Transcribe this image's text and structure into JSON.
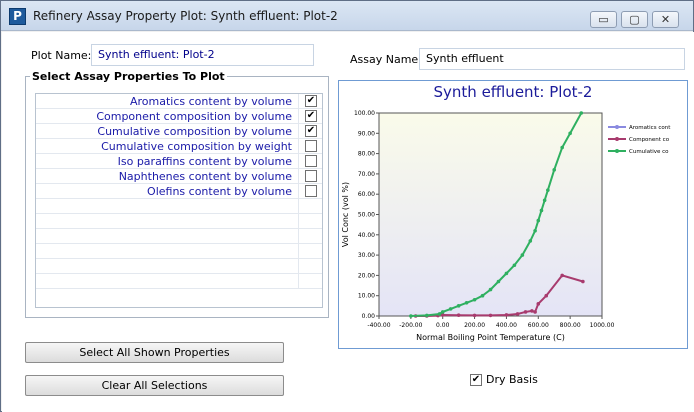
{
  "window": {
    "title": "Refinery Assay Property Plot: Synth effluent: Plot-2",
    "app_icon_letter": "P",
    "minimize": "▭",
    "maximize": "▢",
    "close": "✕"
  },
  "form": {
    "plot_name_label": "Plot Name:",
    "plot_name_value": "Synth effluent: Plot-2",
    "assay_name_label": "Assay Name:",
    "assay_name_value": "Synth effluent"
  },
  "properties": {
    "group_title": "Select Assay Properties To Plot",
    "items": [
      {
        "label": "Aromatics content by volume",
        "checked": true
      },
      {
        "label": "Component composition by volume",
        "checked": true
      },
      {
        "label": "Cumulative composition by volume",
        "checked": true
      },
      {
        "label": "Cumulative composition by weight",
        "checked": false
      },
      {
        "label": "Iso paraffins content by volume",
        "checked": false
      },
      {
        "label": "Naphthenes content by volume",
        "checked": false
      },
      {
        "label": "Olefins content by volume",
        "checked": false
      }
    ]
  },
  "buttons": {
    "select_all": "Select All Shown Properties",
    "clear_all": "Clear All Selections"
  },
  "dry_basis": {
    "label": "Dry Basis",
    "checked": true
  },
  "chart_data": {
    "type": "line",
    "title": "Synth effluent: Plot-2",
    "xlabel": "Normal Boiling Point Temperature (C)",
    "ylabel": "Vol Conc (vol %)",
    "xlim": [
      -400,
      1000
    ],
    "ylim": [
      0,
      100
    ],
    "x_ticks": [
      "-400.00",
      "-200.00",
      "0.00",
      "200.00",
      "400.00",
      "600.00",
      "800.00",
      "1000.00"
    ],
    "y_ticks": [
      "0.00",
      "10.00",
      "20.00",
      "30.00",
      "40.00",
      "50.00",
      "60.00",
      "70.00",
      "80.00",
      "90.00",
      "100.00"
    ],
    "grid": false,
    "legend_position": "right",
    "series": [
      {
        "name": "Aromatics cont",
        "color": "#8a8ae0",
        "x": [],
        "y": []
      },
      {
        "name": "Component co",
        "color": "#a83b6e",
        "x": [
          -170,
          -100,
          -30,
          0,
          100,
          200,
          300,
          400,
          470,
          520,
          560,
          580,
          600,
          650,
          750,
          880
        ],
        "y": [
          0,
          0,
          0.2,
          0.5,
          0.4,
          0.3,
          0.3,
          0.5,
          1,
          2,
          2.5,
          2,
          6,
          10,
          20,
          17
        ]
      },
      {
        "name": "Cumulative co",
        "color": "#2fb060",
        "x": [
          -200,
          -100,
          -20,
          0,
          50,
          100,
          150,
          200,
          250,
          300,
          350,
          400,
          450,
          500,
          550,
          580,
          600,
          620,
          640,
          660,
          700,
          750,
          800,
          870
        ],
        "y": [
          0,
          0.3,
          1,
          2,
          3.5,
          5,
          6.5,
          8,
          10,
          13,
          17,
          21,
          25,
          30,
          37,
          42,
          47,
          52,
          57,
          62,
          72,
          83,
          90,
          100
        ]
      }
    ]
  }
}
